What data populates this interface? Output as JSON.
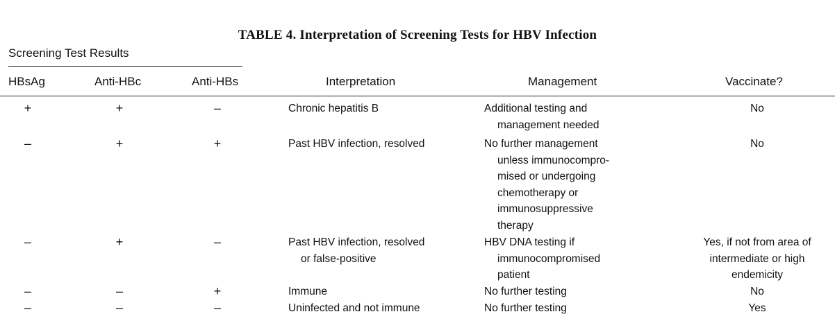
{
  "table": {
    "title": "TABLE 4. Interpretation of Screening Tests for HBV Infection",
    "group_header": "Screening Test Results",
    "columns": {
      "hbsag": "HBsAg",
      "anti_hbc": "Anti-HBc",
      "anti_hbs": "Anti-HBs",
      "interpretation": "Interpretation",
      "management": "Management",
      "vaccinate": "Vaccinate?"
    },
    "rows": [
      {
        "hbsag": "+",
        "anti_hbc": "+",
        "anti_hbs": "–",
        "interpretation": [
          "Chronic hepatitis B"
        ],
        "management": [
          "Additional testing and",
          "management needed"
        ],
        "vaccinate": [
          "No"
        ]
      },
      {
        "hbsag": "–",
        "anti_hbc": "+",
        "anti_hbs": "+",
        "interpretation": [
          "Past HBV infection, resolved"
        ],
        "management": [
          "No further management",
          "unless immunocompro-",
          "mised or undergoing",
          "chemotherapy or",
          "immunosuppressive",
          "therapy"
        ],
        "vaccinate": [
          "No"
        ]
      },
      {
        "hbsag": "–",
        "anti_hbc": "+",
        "anti_hbs": "–",
        "interpretation": [
          "Past HBV infection, resolved",
          "or false-positive"
        ],
        "management": [
          "HBV DNA testing if",
          "immunocompromised",
          "patient"
        ],
        "vaccinate": [
          "Yes, if not from area of",
          "intermediate or high",
          "endemicity"
        ]
      },
      {
        "hbsag": "–",
        "anti_hbc": "–",
        "anti_hbs": "+",
        "interpretation": [
          "Immune"
        ],
        "management": [
          "No further testing"
        ],
        "vaccinate": [
          "No"
        ]
      },
      {
        "hbsag": "–",
        "anti_hbc": "–",
        "anti_hbs": "–",
        "interpretation": [
          "Uninfected and not immune"
        ],
        "management": [
          "No further testing"
        ],
        "vaccinate": [
          "Yes"
        ]
      }
    ]
  }
}
